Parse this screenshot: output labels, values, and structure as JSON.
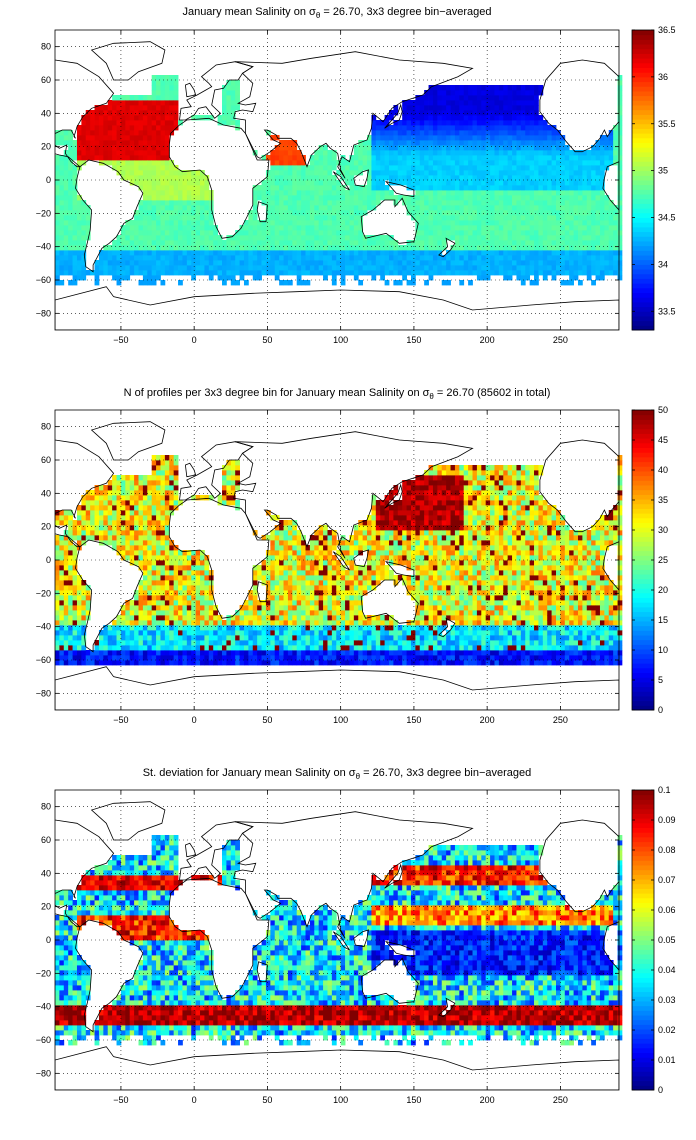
{
  "maps": [
    {
      "title_prefix": "January mean Salinity on ",
      "sigma": "σ",
      "sub": "θ",
      "title_suffix": " = 26.70, 3x3 degree bin−averaged",
      "field": "salinity",
      "xticks": [
        "−50",
        "0",
        "50",
        "100",
        "150",
        "200",
        "250"
      ],
      "xtick_values": [
        -50,
        0,
        50,
        100,
        150,
        200,
        250
      ],
      "yticks": [
        "80",
        "60",
        "40",
        "20",
        "0",
        "−20",
        "−40",
        "−60",
        "−80"
      ],
      "ytick_values": [
        80,
        60,
        40,
        20,
        0,
        -20,
        -40,
        -60,
        -80
      ],
      "colorbar_ticks": [
        "36.5",
        "36",
        "35.5",
        "35",
        "34.5",
        "34",
        "33.5"
      ],
      "colorbar_values": [
        36.5,
        36,
        35.5,
        35,
        34.5,
        34,
        33.5
      ],
      "colorbar_range": [
        33.3,
        36.5
      ]
    },
    {
      "title_prefix": "N of profiles per 3x3 degree bin for January mean Salinity on ",
      "sigma": "σ",
      "sub": "θ",
      "title_suffix": " = 26.70 (85602 in total)",
      "field": "count",
      "xticks": [
        "−50",
        "0",
        "50",
        "100",
        "150",
        "200",
        "250"
      ],
      "xtick_values": [
        -50,
        0,
        50,
        100,
        150,
        200,
        250
      ],
      "yticks": [
        "80",
        "60",
        "40",
        "20",
        "0",
        "−20",
        "−40",
        "−60",
        "−80"
      ],
      "ytick_values": [
        80,
        60,
        40,
        20,
        0,
        -20,
        -40,
        -60,
        -80
      ],
      "colorbar_ticks": [
        "50",
        "45",
        "40",
        "35",
        "30",
        "25",
        "20",
        "15",
        "10",
        "5",
        "0"
      ],
      "colorbar_values": [
        50,
        45,
        40,
        35,
        30,
        25,
        20,
        15,
        10,
        5,
        0
      ],
      "colorbar_range": [
        0,
        50
      ]
    },
    {
      "title_prefix": "St. deviation for January mean Salinity on ",
      "sigma": "σ",
      "sub": "θ",
      "title_suffix": " = 26.70, 3x3 degree bin−averaged",
      "field": "stddev",
      "xticks": [
        "−50",
        "0",
        "50",
        "100",
        "150",
        "200",
        "250"
      ],
      "xtick_values": [
        -50,
        0,
        50,
        100,
        150,
        200,
        250
      ],
      "yticks": [
        "80",
        "60",
        "40",
        "20",
        "0",
        "−20",
        "−40",
        "−60",
        "−80"
      ],
      "ytick_values": [
        80,
        60,
        40,
        20,
        0,
        -20,
        -40,
        -60,
        -80
      ],
      "colorbar_ticks": [
        "0.1",
        "0.09",
        "0.08",
        "0.07",
        "0.06",
        "0.05",
        "0.04",
        "0.03",
        "0.02",
        "0.01",
        "0"
      ],
      "colorbar_values": [
        0.1,
        0.09,
        0.08,
        0.07,
        0.06,
        0.05,
        0.04,
        0.03,
        0.02,
        0.01,
        0
      ],
      "colorbar_range": [
        0,
        0.1
      ]
    }
  ],
  "map_extent": {
    "lon": [
      -95,
      290
    ],
    "lat": [
      -90,
      90
    ]
  },
  "colormap": "jet"
}
